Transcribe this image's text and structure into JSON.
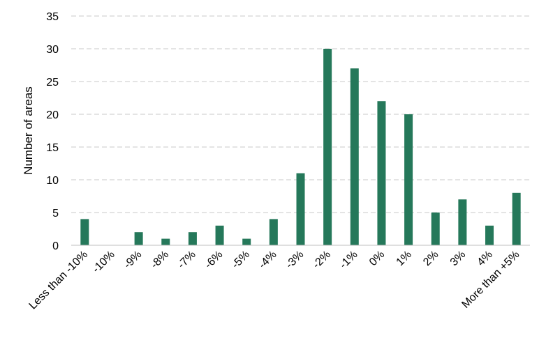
{
  "chart_data": {
    "type": "bar",
    "title": "",
    "xlabel": "",
    "ylabel": "Number of areas",
    "ylim": [
      0,
      35
    ],
    "yticks": [
      0,
      5,
      10,
      15,
      20,
      25,
      30,
      35
    ],
    "grid": true,
    "legend": "none",
    "bar_color": "#25785a",
    "categories": [
      "Less than -10%",
      "-10%",
      "-9%",
      "-8%",
      "-7%",
      "-6%",
      "-5%",
      "-4%",
      "-3%",
      "-2%",
      "-1%",
      "0%",
      "1%",
      "2%",
      "3%",
      "4%",
      "More than +5%"
    ],
    "values": [
      4,
      0,
      2,
      1,
      2,
      3,
      1,
      4,
      11,
      30,
      27,
      22,
      20,
      5,
      7,
      3,
      8
    ]
  }
}
